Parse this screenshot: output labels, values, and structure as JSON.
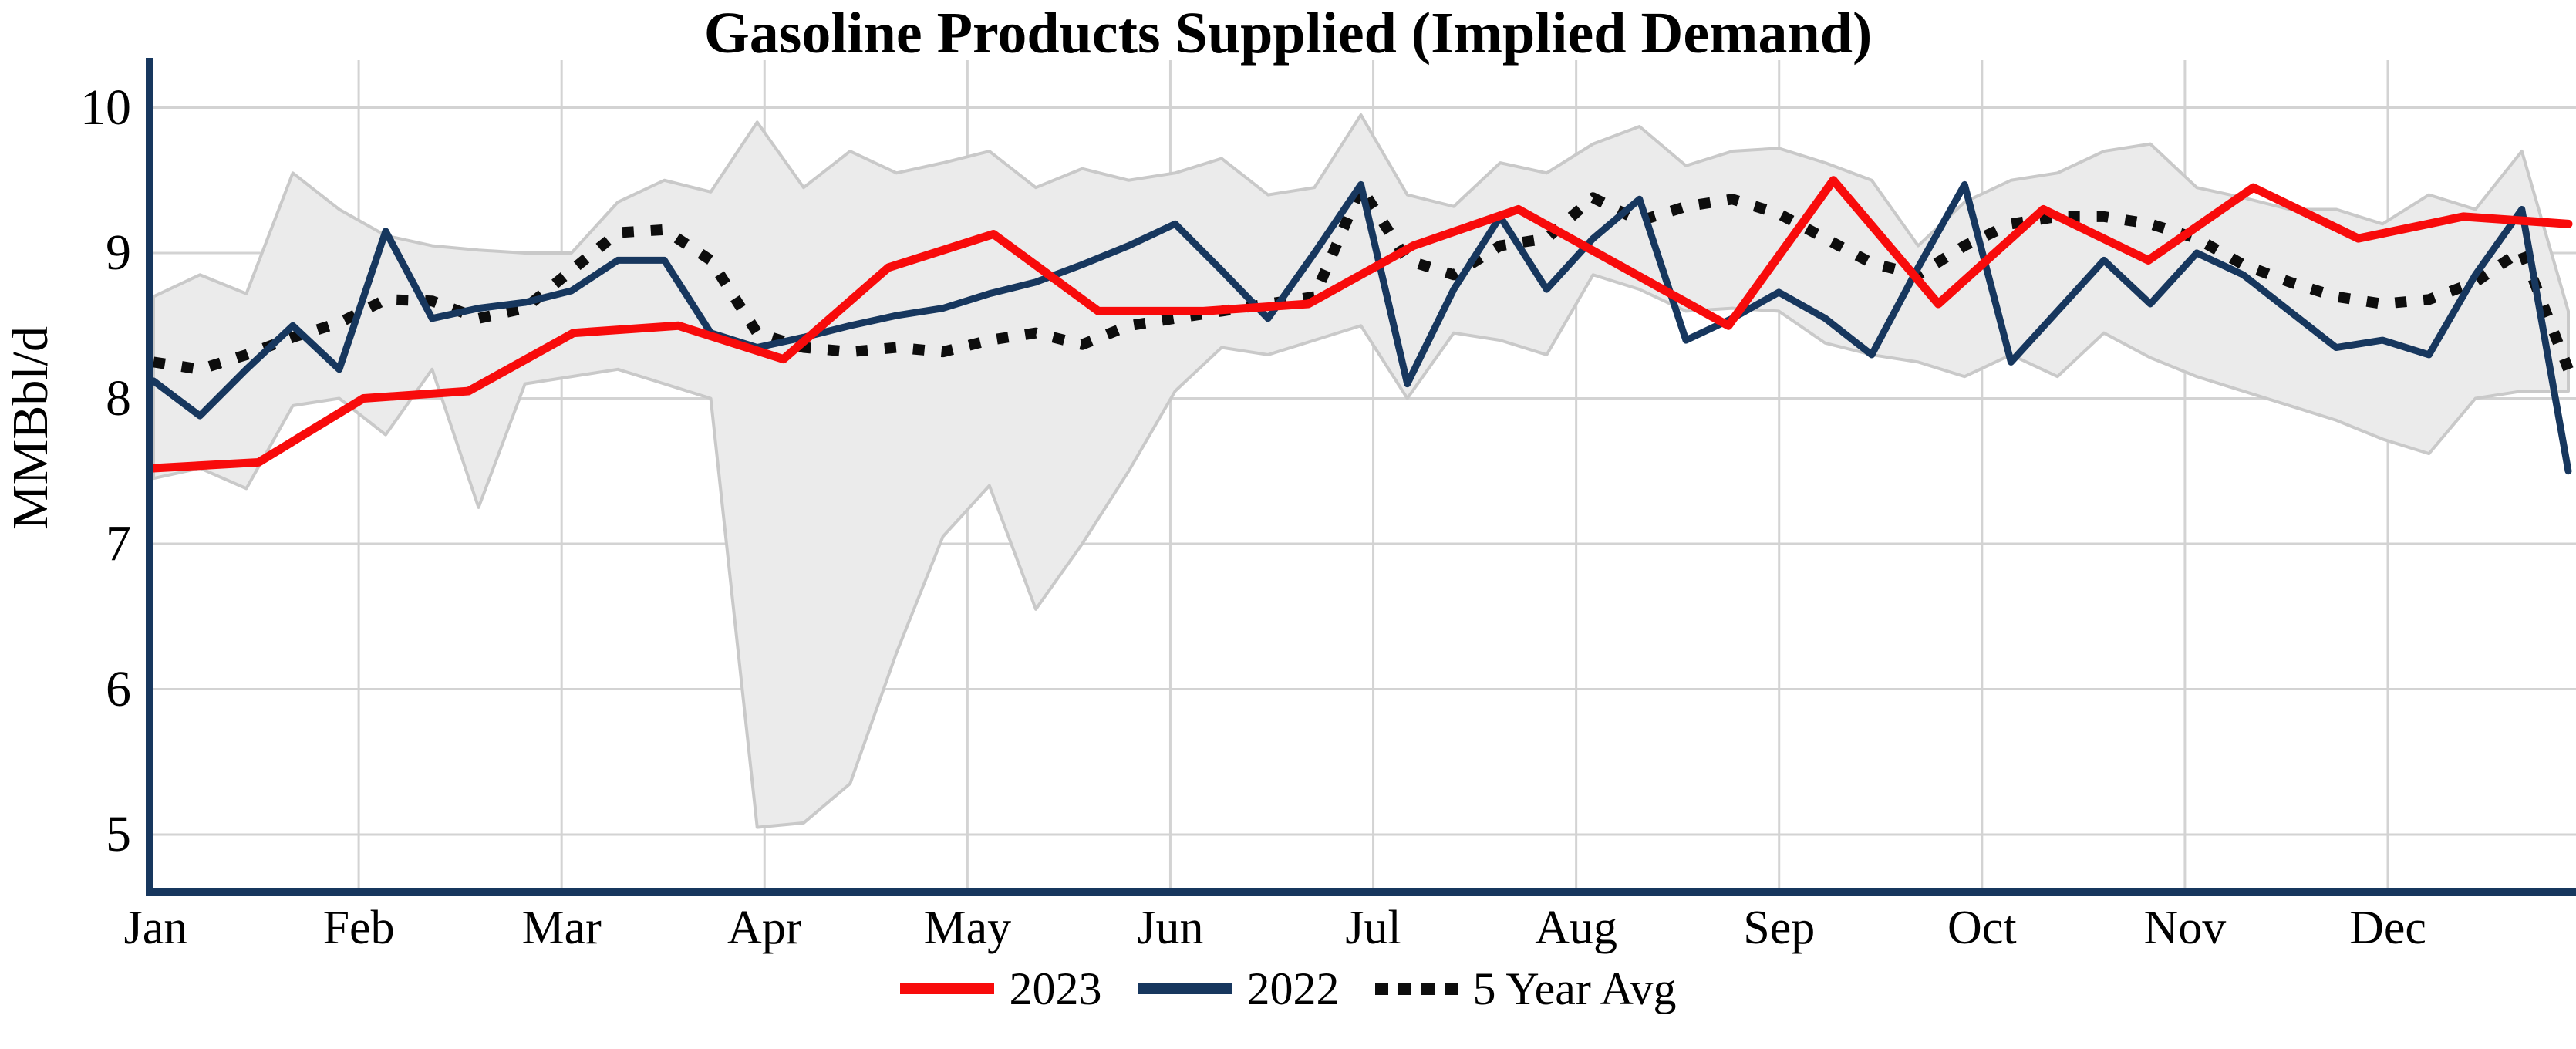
{
  "chart_data": {
    "type": "line",
    "title": "Gasoline Products Supplied (Implied Demand)",
    "ylabel": "MMBbl/d",
    "ylim": [
      5,
      10
    ],
    "yticks": [
      10,
      9,
      8,
      7,
      6,
      5
    ],
    "grid": "on",
    "legend_position": "bottom-center",
    "categories_months": [
      "Jan",
      "Feb",
      "Mar",
      "Apr",
      "May",
      "Jun",
      "Jul",
      "Aug",
      "Sep",
      "Oct",
      "Nov",
      "Dec"
    ],
    "x_unit": "weekly points, Jan through Dec",
    "colors": {
      "red_2023": "#F80B0B",
      "navy_2022": "#17375E",
      "dotted_5yr": "#0D0D0D",
      "axis": "#17375E",
      "gridline": "#D3D3D3",
      "band_fill": "#EBEBEB",
      "band_edge": "#C9C9C9"
    },
    "band": {
      "name": "5-year min-max range",
      "upper": [
        8.7,
        8.85,
        8.72,
        9.55,
        9.3,
        9.12,
        9.05,
        9.02,
        9.0,
        9.0,
        9.35,
        9.5,
        9.42,
        9.9,
        9.45,
        9.7,
        9.55,
        9.62,
        9.7,
        9.45,
        9.58,
        9.5,
        9.55,
        9.65,
        9.4,
        9.45,
        9.95,
        9.4,
        9.32,
        9.62,
        9.55,
        9.75,
        9.87,
        9.6,
        9.7,
        9.72,
        9.62,
        9.5,
        9.05,
        9.35,
        9.5,
        9.55,
        9.7,
        9.75,
        9.45,
        9.38,
        9.3,
        9.3,
        9.2,
        9.4,
        9.3,
        9.7,
        8.6
      ],
      "lower": [
        7.45,
        7.52,
        7.38,
        7.95,
        8.0,
        7.75,
        8.2,
        7.25,
        8.1,
        8.15,
        8.2,
        8.1,
        8.0,
        5.05,
        5.08,
        5.35,
        6.25,
        7.05,
        7.4,
        6.55,
        7.0,
        7.5,
        8.05,
        8.35,
        8.3,
        8.4,
        8.5,
        8.0,
        8.45,
        8.4,
        8.3,
        8.85,
        8.75,
        8.6,
        8.62,
        8.6,
        8.38,
        8.3,
        8.25,
        8.15,
        8.3,
        8.15,
        8.45,
        8.28,
        8.15,
        8.05,
        7.95,
        7.85,
        7.72,
        7.62,
        8.0,
        8.05,
        8.05
      ]
    },
    "series": [
      {
        "name": "2023",
        "style": "solid",
        "color": "#F80B0B",
        "width": 11,
        "values": [
          7.52,
          7.56,
          8.0,
          8.05,
          8.45,
          8.5,
          8.27,
          8.9,
          9.13,
          8.6,
          8.6,
          8.65,
          9.05,
          9.3,
          8.9,
          8.5,
          9.5,
          8.65,
          9.3,
          8.95,
          9.45,
          9.1,
          9.25,
          9.2
        ]
      },
      {
        "name": "2022",
        "style": "solid",
        "color": "#17375E",
        "width": 9,
        "values": [
          8.12,
          7.88,
          8.2,
          8.5,
          8.2,
          9.15,
          8.55,
          8.62,
          8.66,
          8.74,
          8.95,
          8.95,
          8.45,
          8.35,
          8.42,
          8.5,
          8.57,
          8.62,
          8.72,
          8.8,
          8.92,
          9.05,
          9.2,
          8.88,
          8.55,
          9.0,
          9.47,
          8.1,
          8.75,
          9.25,
          8.75,
          9.1,
          9.37,
          8.4,
          8.55,
          8.73,
          8.55,
          8.3,
          8.9,
          9.47,
          8.25,
          8.6,
          8.95,
          8.65,
          9.0,
          8.85,
          8.6,
          8.35,
          8.4,
          8.3,
          8.85,
          9.3,
          7.5
        ]
      },
      {
        "name": "5 Year Avg",
        "style": "dotted",
        "color": "#0D0D0D",
        "width": 14,
        "values": [
          8.25,
          8.2,
          8.3,
          8.42,
          8.52,
          8.68,
          8.67,
          8.55,
          8.62,
          8.88,
          9.14,
          9.16,
          8.95,
          8.45,
          8.35,
          8.32,
          8.35,
          8.32,
          8.4,
          8.45,
          8.37,
          8.5,
          8.55,
          8.6,
          8.65,
          8.7,
          9.45,
          8.95,
          8.85,
          9.05,
          9.1,
          9.38,
          9.22,
          9.32,
          9.37,
          9.27,
          9.1,
          8.93,
          8.85,
          9.05,
          9.2,
          9.25,
          9.25,
          9.2,
          9.1,
          8.92,
          8.8,
          8.7,
          8.65,
          8.68,
          8.8,
          9.02,
          8.2
        ]
      }
    ],
    "legend": [
      {
        "label": "2023",
        "swatch": "red-line"
      },
      {
        "label": "2022",
        "swatch": "navy-line"
      },
      {
        "label": "5 Year Avg",
        "swatch": "black-dotted"
      }
    ]
  }
}
